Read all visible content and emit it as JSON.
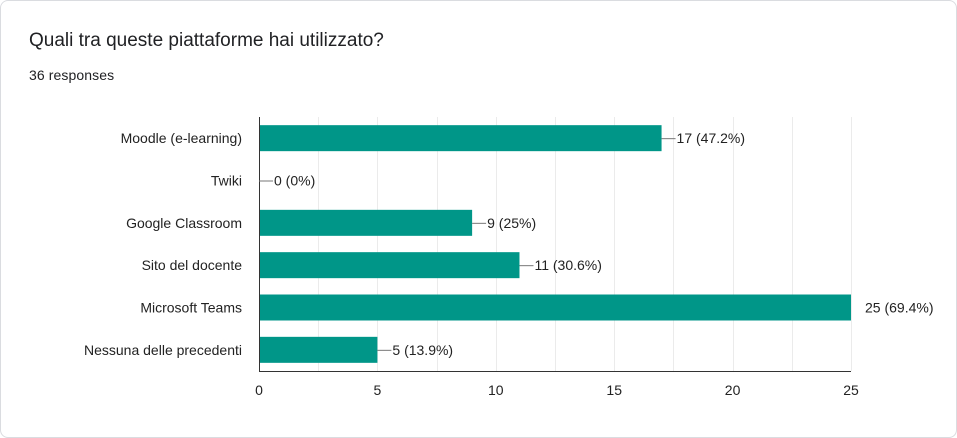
{
  "question": {
    "title": "Quali tra queste piattaforme hai utilizzato?",
    "responses": "36 responses"
  },
  "colors": {
    "bar": "#009688",
    "grid": "#ebebeb",
    "axis": "#333333",
    "connector": "#777777"
  },
  "chart_data": {
    "type": "bar",
    "orientation": "horizontal",
    "categories": [
      "Moodle (e-learning)",
      "Twiki",
      "Google Classroom",
      "Sito del docente",
      "Microsoft Teams",
      "Nessuna delle precedenti"
    ],
    "values": [
      17,
      0,
      9,
      11,
      25,
      5
    ],
    "data_labels": [
      "17 (47.2%)",
      "0 (0%)",
      "9 (25%)",
      "11 (30.6%)",
      "25 (69.4%)",
      "5 (13.9%)"
    ],
    "xlim": [
      0,
      25
    ],
    "xticks": [
      0,
      5,
      10,
      15,
      20,
      25
    ],
    "grid": true
  }
}
